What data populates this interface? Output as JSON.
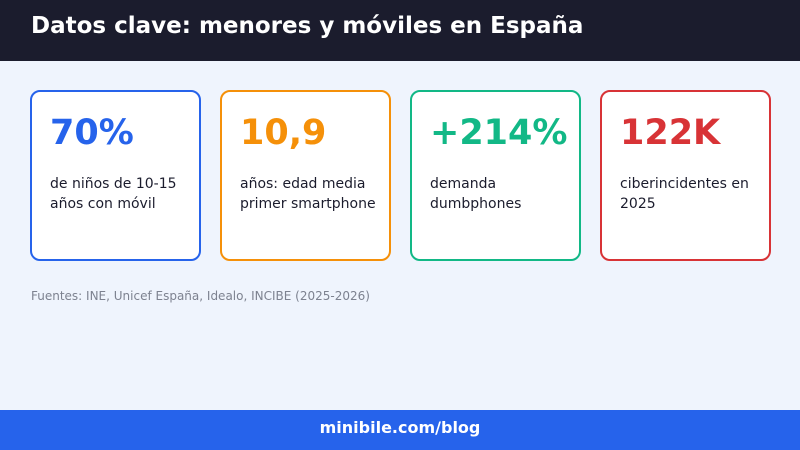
{
  "header": {
    "title": "Datos clave: menores y móviles en España"
  },
  "cards": [
    {
      "value": "70%",
      "label": "de niños de 10-15 años con móvil",
      "color": "#2663eb"
    },
    {
      "value": "10,9",
      "label": "años: edad media primer smartphone",
      "color": "#f59009"
    },
    {
      "value": "+214%",
      "label": "demanda dumbphones",
      "color": "#12b886"
    },
    {
      "value": "122K",
      "label": "ciberincidentes en 2025",
      "color": "#d83336"
    }
  ],
  "sources": "Fuentes: INE, Unicef España, Idealo, INCIBE (2025-2026)",
  "footer": {
    "link": "minibile.com/blog"
  },
  "colors": {
    "header_bg": "#1b1c2d",
    "page_bg": "#eff4fd",
    "footer_bg": "#2663eb"
  }
}
